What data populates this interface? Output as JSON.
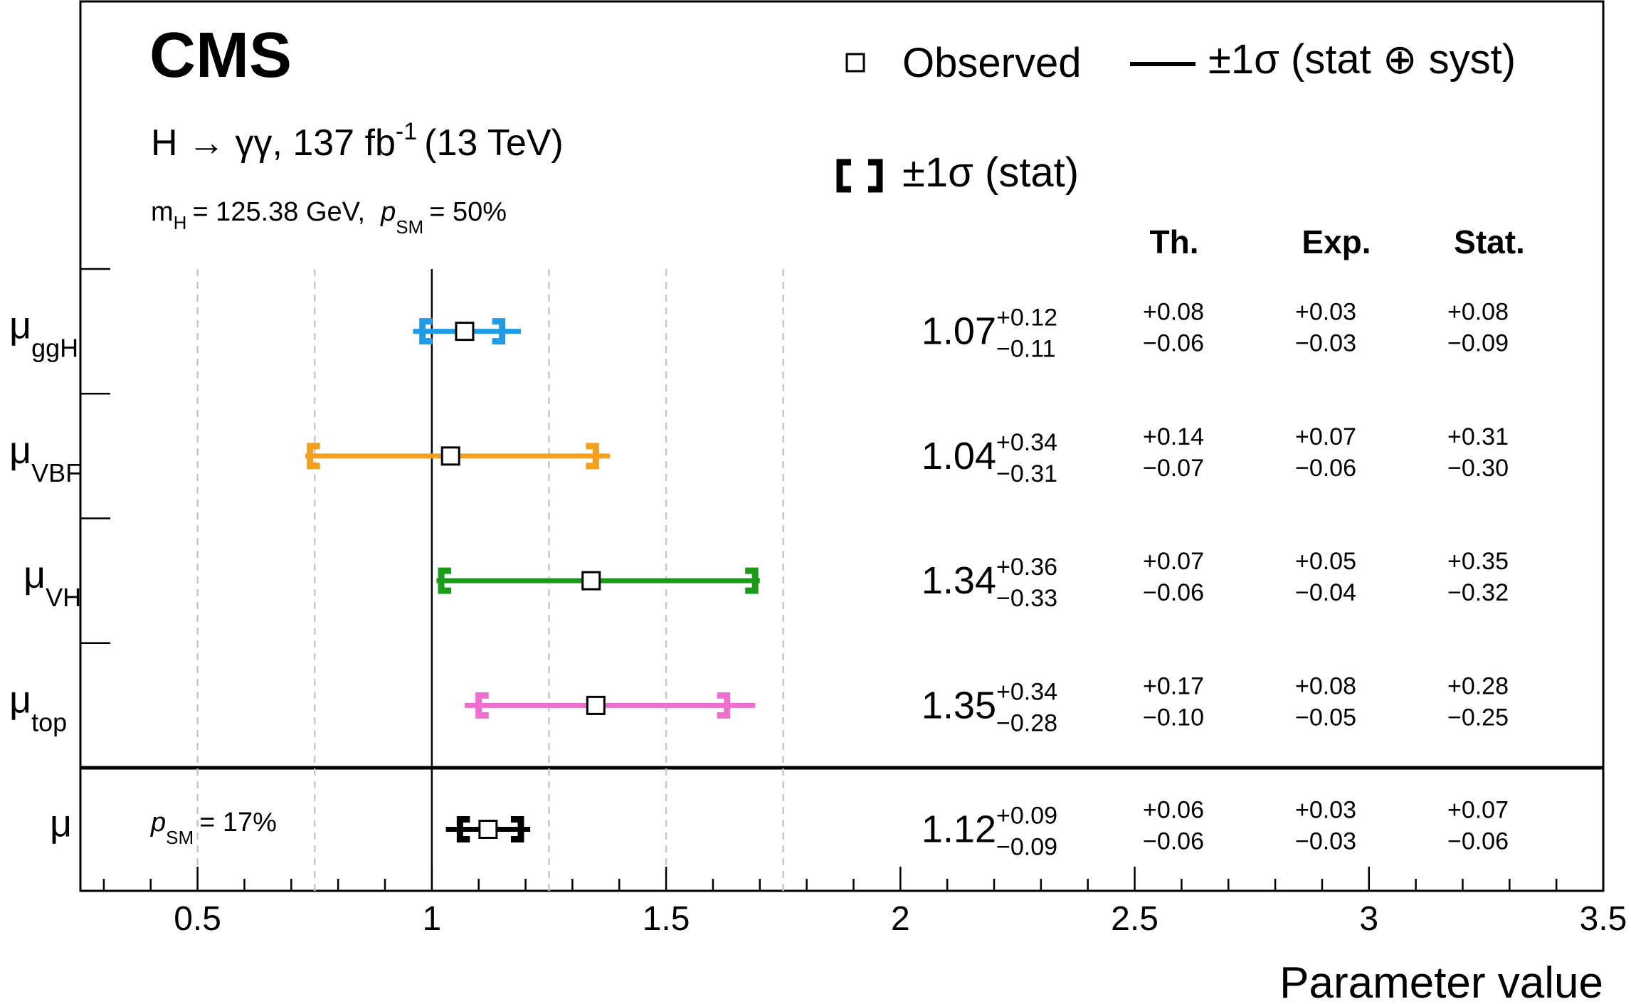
{
  "chart_data": {
    "type": "scatter",
    "experiment": "CMS",
    "channel_label": "H → γγ, 137 fb",
    "lumi_exp": "-1",
    "energy": "(13 TeV)",
    "mass_label": "m",
    "mass_sub": "H",
    "mass_value": "= 125.38 GeV,",
    "psm_sym": "p",
    "psm_sub": "SM",
    "psm_value": "= 50%",
    "legend": {
      "observed": "Observed",
      "total": "±1σ (stat ⊕ syst)",
      "stat": "±1σ (stat)"
    },
    "column_headers": [
      "Th.",
      "Exp.",
      "Stat."
    ],
    "xlabel": "Parameter value",
    "xlim": [
      0.25,
      3.5
    ],
    "x_ticks": [
      "0.5",
      "1",
      "1.5",
      "2",
      "2.5",
      "3",
      "3.5"
    ],
    "x_tick_values": [
      0.5,
      1,
      1.5,
      2,
      2.5,
      3,
      3.5
    ],
    "reference_lines": [
      0.5,
      0.75,
      1.25,
      1.5,
      1.75
    ],
    "sm_line": 1.0,
    "parameters": [
      {
        "symbol": "μ",
        "sub": "ggH",
        "color": "#1f9ce9",
        "value": 1.07,
        "value_text": "1.07",
        "tot_up": "+0.12",
        "tot_dn": "−0.11",
        "tot_up_v": 0.12,
        "tot_dn_v": 0.11,
        "stat_up_v": 0.08,
        "stat_dn_v": 0.09,
        "th_up": "+0.08",
        "th_dn": "−0.06",
        "exp_up": "+0.03",
        "exp_dn": "−0.03",
        "stat_up": "+0.08",
        "stat_dn": "−0.09"
      },
      {
        "symbol": "μ",
        "sub": "VBF",
        "color": "#f5a01a",
        "value": 1.04,
        "value_text": "1.04",
        "tot_up": "+0.34",
        "tot_dn": "−0.31",
        "tot_up_v": 0.34,
        "tot_dn_v": 0.31,
        "stat_up_v": 0.31,
        "stat_dn_v": 0.3,
        "th_up": "+0.14",
        "th_dn": "−0.07",
        "exp_up": "+0.07",
        "exp_dn": "−0.06",
        "stat_up": "+0.31",
        "stat_dn": "−0.30"
      },
      {
        "symbol": "μ",
        "sub": "VH",
        "color": "#1a9c1a",
        "value": 1.34,
        "value_text": "1.34",
        "tot_up": "+0.36",
        "tot_dn": "−0.33",
        "tot_up_v": 0.36,
        "tot_dn_v": 0.33,
        "stat_up_v": 0.35,
        "stat_dn_v": 0.32,
        "th_up": "+0.07",
        "th_dn": "−0.06",
        "exp_up": "+0.05",
        "exp_dn": "−0.04",
        "stat_up": "+0.35",
        "stat_dn": "−0.32"
      },
      {
        "symbol": "μ",
        "sub": "top",
        "color": "#f06ed0",
        "value": 1.35,
        "value_text": "1.35",
        "tot_up": "+0.34",
        "tot_dn": "−0.28",
        "tot_up_v": 0.34,
        "tot_dn_v": 0.28,
        "stat_up_v": 0.28,
        "stat_dn_v": 0.25,
        "th_up": "+0.17",
        "th_dn": "−0.10",
        "exp_up": "+0.08",
        "exp_dn": "−0.05",
        "stat_up": "+0.28",
        "stat_dn": "−0.25"
      }
    ],
    "combined": {
      "symbol": "μ",
      "sub": "",
      "color": "#000000",
      "value": 1.12,
      "value_text": "1.12",
      "tot_up": "+0.09",
      "tot_dn": "−0.09",
      "tot_up_v": 0.09,
      "tot_dn_v": 0.09,
      "stat_up_v": 0.07,
      "stat_dn_v": 0.06,
      "th_up": "+0.06",
      "th_dn": "−0.06",
      "exp_up": "+0.03",
      "exp_dn": "−0.03",
      "stat_up": "+0.07",
      "stat_dn": "−0.06",
      "psm_value": "= 17%"
    }
  }
}
